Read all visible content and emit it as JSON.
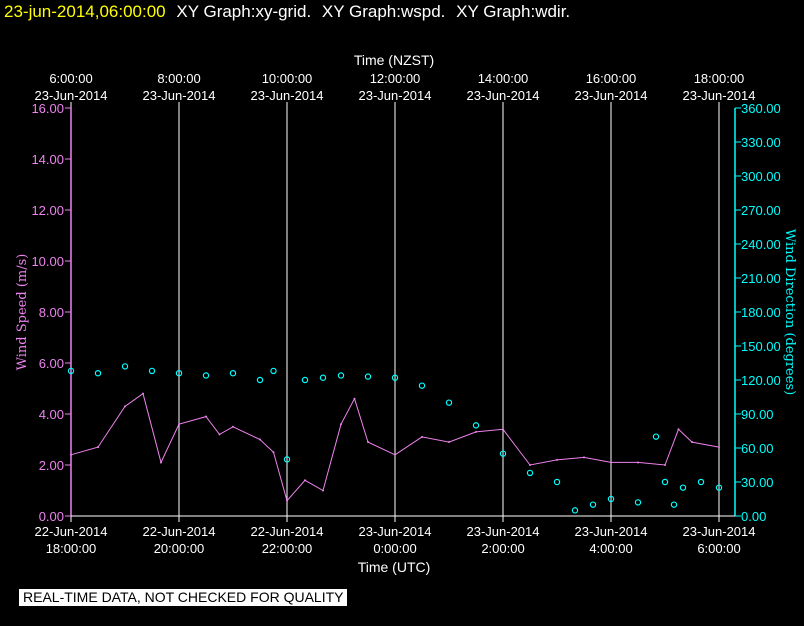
{
  "header": {
    "timestamp": "23-jun-2014,06:00:00",
    "graphs": [
      "XY Graph:xy-grid.",
      "XY Graph:wspd.",
      "XY Graph:wdir."
    ]
  },
  "notice": "REAL-TIME DATA, NOT CHECKED FOR QUALITY",
  "colors": {
    "wind_speed": "#ee82ee",
    "wind_direction": "#00ffff",
    "grid": "#ffffff",
    "header_time": "#ffff00"
  },
  "chart_data": {
    "type": "line",
    "xlabel_top": "Time (NZST)",
    "xlabel_bottom": "Time (UTC)",
    "x_ticks_top": [
      {
        "time": "6:00:00",
        "date": "23-Jun-2014"
      },
      {
        "time": "8:00:00",
        "date": "23-Jun-2014"
      },
      {
        "time": "10:00:00",
        "date": "23-Jun-2014"
      },
      {
        "time": "12:00:00",
        "date": "23-Jun-2014"
      },
      {
        "time": "14:00:00",
        "date": "23-Jun-2014"
      },
      {
        "time": "16:00:00",
        "date": "23-Jun-2014"
      },
      {
        "time": "18:00:00",
        "date": "23-Jun-2014"
      }
    ],
    "x_ticks_bottom": [
      {
        "date": "22-Jun-2014",
        "time": "18:00:00"
      },
      {
        "date": "22-Jun-2014",
        "time": "20:00:00"
      },
      {
        "date": "22-Jun-2014",
        "time": "22:00:00"
      },
      {
        "date": "23-Jun-2014",
        "time": "0:00:00"
      },
      {
        "date": "23-Jun-2014",
        "time": "2:00:00"
      },
      {
        "date": "23-Jun-2014",
        "time": "4:00:00"
      },
      {
        "date": "23-Jun-2014",
        "time": "6:00:00"
      }
    ],
    "xlim_utc": [
      "2014-06-22 18:00",
      "2014-06-23 06:00"
    ],
    "ylabel_left": "Wind Speed (m/s)",
    "ylim_left": [
      0,
      16
    ],
    "yticks_left": [
      "0.00",
      "2.00",
      "4.00",
      "6.00",
      "8.00",
      "10.00",
      "12.00",
      "14.00",
      "16.00"
    ],
    "ylabel_right": "Wind Direction (degrees)",
    "ylim_right": [
      0,
      360
    ],
    "yticks_right": [
      "0.00",
      "30.00",
      "60.00",
      "90.00",
      "120.00",
      "150.00",
      "180.00",
      "210.00",
      "240.00",
      "270.00",
      "300.00",
      "330.00",
      "360.00"
    ],
    "grid": "vertical lines at x ticks",
    "series": [
      {
        "name": "Wind Speed",
        "axis": "left",
        "style": "line",
        "x_utc": [
          "2014-06-22 18:00",
          "2014-06-22 18:30",
          "2014-06-22 19:00",
          "2014-06-22 19:20",
          "2014-06-22 19:40",
          "2014-06-22 20:00",
          "2014-06-22 20:30",
          "2014-06-22 20:45",
          "2014-06-22 21:00",
          "2014-06-22 21:30",
          "2014-06-22 21:45",
          "2014-06-22 22:00",
          "2014-06-22 22:20",
          "2014-06-22 22:40",
          "2014-06-22 23:00",
          "2014-06-22 23:15",
          "2014-06-22 23:30",
          "2014-06-23 00:00",
          "2014-06-23 00:30",
          "2014-06-23 01:00",
          "2014-06-23 01:30",
          "2014-06-23 02:00",
          "2014-06-23 02:30",
          "2014-06-23 03:00",
          "2014-06-23 03:30",
          "2014-06-23 04:00",
          "2014-06-23 04:30",
          "2014-06-23 05:00",
          "2014-06-23 05:15",
          "2014-06-23 05:30",
          "2014-06-23 06:00"
        ],
        "values": [
          2.4,
          2.7,
          4.3,
          4.8,
          2.1,
          3.6,
          3.9,
          3.2,
          3.5,
          3.0,
          2.5,
          0.6,
          1.4,
          1.0,
          3.6,
          4.6,
          2.9,
          2.4,
          3.1,
          2.9,
          3.3,
          3.4,
          2.0,
          2.2,
          2.3,
          2.1,
          2.1,
          2.0,
          3.4,
          2.9,
          2.7
        ]
      },
      {
        "name": "Wind Direction",
        "axis": "right",
        "style": "markers",
        "x_utc": [
          "2014-06-22 18:00",
          "2014-06-22 18:30",
          "2014-06-22 19:00",
          "2014-06-22 19:30",
          "2014-06-22 20:00",
          "2014-06-22 20:30",
          "2014-06-22 21:00",
          "2014-06-22 21:30",
          "2014-06-22 21:45",
          "2014-06-22 22:00",
          "2014-06-22 22:20",
          "2014-06-22 22:40",
          "2014-06-22 23:00",
          "2014-06-22 23:30",
          "2014-06-23 00:00",
          "2014-06-23 00:30",
          "2014-06-23 01:00",
          "2014-06-23 01:30",
          "2014-06-23 02:00",
          "2014-06-23 02:30",
          "2014-06-23 03:00",
          "2014-06-23 03:20",
          "2014-06-23 03:40",
          "2014-06-23 04:00",
          "2014-06-23 04:30",
          "2014-06-23 04:50",
          "2014-06-23 05:00",
          "2014-06-23 05:10",
          "2014-06-23 05:20",
          "2014-06-23 05:40",
          "2014-06-23 06:00"
        ],
        "values": [
          128,
          126,
          132,
          128,
          126,
          124,
          126,
          120,
          128,
          50,
          120,
          122,
          124,
          123,
          122,
          115,
          100,
          80,
          55,
          38,
          30,
          5,
          10,
          15,
          12,
          70,
          30,
          10,
          25,
          30,
          25
        ]
      }
    ]
  }
}
